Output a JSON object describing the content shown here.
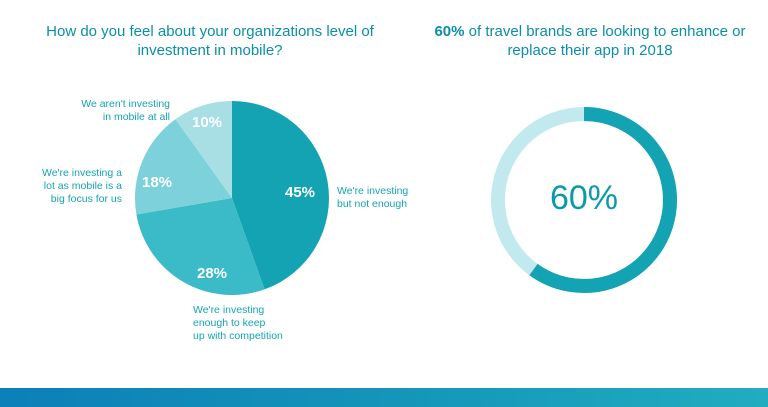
{
  "chart_data": [
    {
      "type": "pie",
      "title": "How do you feel about your organizations level of investment in mobile?",
      "slices": [
        {
          "label": "We're investing but not enough",
          "value": 45,
          "display": "45%",
          "color": "#13a3b2"
        },
        {
          "label": "We're investing enough to keep up with competition",
          "value": 28,
          "display": "28%",
          "color": "#3bbac7"
        },
        {
          "label": "We're investing a lot as mobile is a big focus for us",
          "value": 18,
          "display": "18%",
          "color": "#7dd1da"
        },
        {
          "label": "We aren't investing in mobile at all",
          "value": 10,
          "display": "10%",
          "color": "#a8dfe5"
        }
      ]
    },
    {
      "type": "donut",
      "title_bold": "60%",
      "title_rest": " of travel brands are looking to enhance or replace their app in 2018",
      "value": 60,
      "center_label": "60%",
      "colors": {
        "filled": "#13a3b2",
        "remaining": "#c2e9ee"
      }
    }
  ],
  "pie_labels": {
    "slice0": [
      "We're investing",
      "but not enough"
    ],
    "slice1": [
      "We're investing",
      "enough to keep",
      "up with competition"
    ],
    "slice2": [
      "We're investing a",
      "lot as mobile is a",
      "big focus for us"
    ],
    "slice3": [
      "We aren't investing",
      "in mobile at all"
    ]
  },
  "colors": {
    "title": "#0a8fa8",
    "label": "#15a4b4",
    "footer_start": "#0c7fb8",
    "footer_end": "#22acc0"
  }
}
